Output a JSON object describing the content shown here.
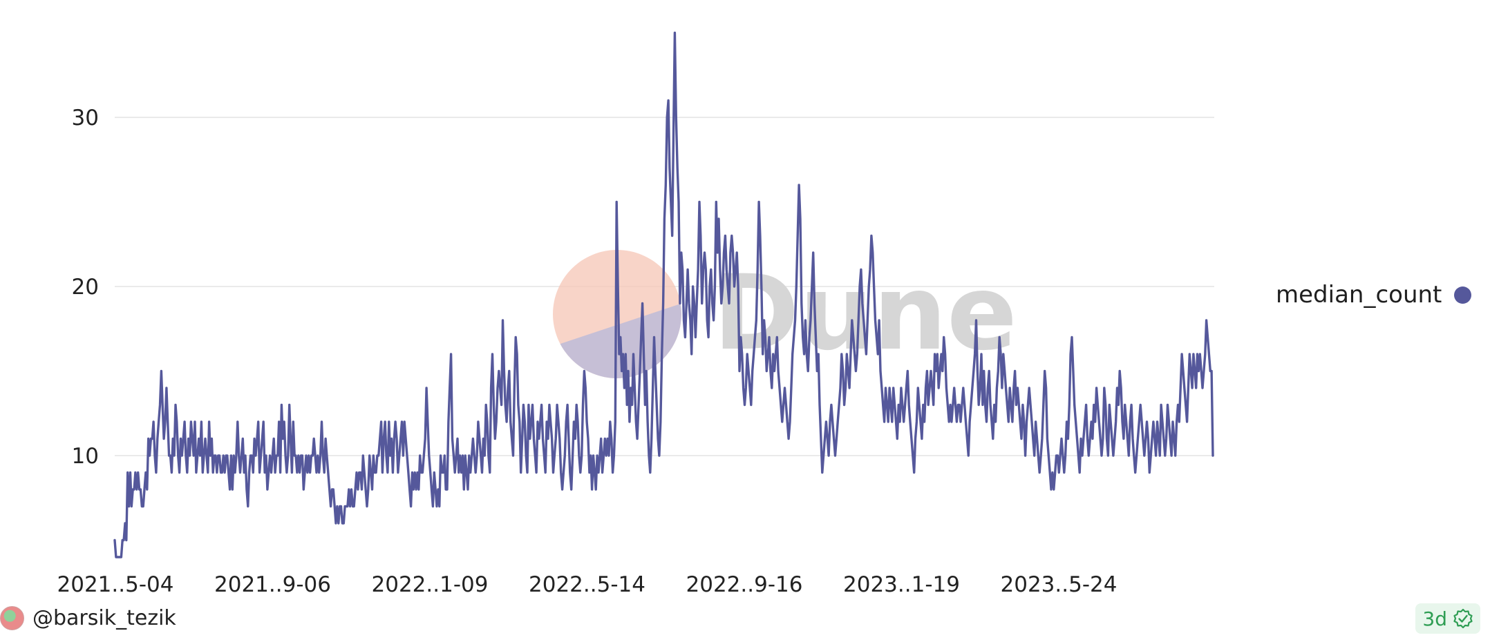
{
  "chart_data": {
    "type": "line",
    "x_ticks": [
      "2021..5-04",
      "2021..9-06",
      "2022..1-09",
      "2022..5-14",
      "2022..9-16",
      "2023..1-19",
      "2023..5-24"
    ],
    "y_ticks": [
      10,
      20,
      30
    ],
    "ylim": [
      4,
      35
    ],
    "grid": true,
    "legend_position": "right",
    "series": [
      {
        "name": "median_count",
        "color": "#55589b",
        "values": [
          5,
          4,
          4,
          4,
          4,
          4,
          5,
          5,
          6,
          5,
          9,
          7,
          9,
          7,
          8,
          8,
          9,
          8,
          9,
          8,
          8,
          7,
          7,
          8,
          9,
          8,
          11,
          10,
          11,
          11,
          12,
          10,
          9,
          11,
          12,
          13,
          15,
          13,
          11,
          12,
          14,
          12,
          10,
          10,
          9,
          11,
          10,
          13,
          12,
          10,
          9,
          11,
          10,
          11,
          12,
          10,
          9,
          11,
          10,
          12,
          11,
          10,
          12,
          9,
          10,
          11,
          10,
          12,
          9,
          10,
          11,
          10,
          9,
          12,
          10,
          11,
          9,
          10,
          10,
          9,
          10,
          10,
          9,
          9,
          10,
          9,
          10,
          10,
          9,
          8,
          10,
          8,
          10,
          9,
          10,
          12,
          10,
          9,
          10,
          11,
          9,
          10,
          8,
          7,
          9,
          10,
          10,
          9,
          11,
          10,
          11,
          12,
          9,
          10,
          11,
          12,
          9,
          10,
          8,
          9,
          10,
          9,
          10,
          11,
          9,
          10,
          10,
          12,
          9,
          13,
          11,
          12,
          10,
          9,
          10,
          13,
          11,
          9,
          12,
          10,
          10,
          9,
          10,
          9,
          10,
          10,
          8,
          9,
          10,
          9,
          10,
          9,
          10,
          10,
          11,
          10,
          9,
          10,
          9,
          10,
          12,
          10,
          9,
          11,
          10,
          9,
          8,
          7,
          8,
          8,
          7,
          6,
          7,
          6,
          7,
          7,
          6,
          6,
          7,
          7,
          7,
          8,
          7,
          8,
          7,
          7,
          8,
          9,
          8,
          9,
          9,
          8,
          10,
          9,
          8,
          7,
          8,
          10,
          9,
          8,
          10,
          9,
          9,
          10,
          10,
          11,
          12,
          9,
          11,
          12,
          10,
          9,
          12,
          10,
          11,
          9,
          11,
          12,
          11,
          9,
          10,
          11,
          12,
          10,
          12,
          11,
          10,
          9,
          8,
          7,
          9,
          8,
          9,
          8,
          9,
          8,
          10,
          9,
          9,
          10,
          11,
          14,
          12,
          10,
          9,
          8,
          7,
          9,
          8,
          7,
          8,
          7,
          10,
          9,
          9,
          10,
          8,
          8,
          12,
          14,
          16,
          11,
          10,
          9,
          10,
          11,
          9,
          10,
          9,
          10,
          8,
          10,
          9,
          8,
          10,
          9,
          10,
          11,
          10,
          9,
          10,
          12,
          11,
          10,
          9,
          11,
          10,
          13,
          12,
          10,
          9,
          14,
          16,
          13,
          11,
          12,
          14,
          15,
          14,
          13,
          18,
          15,
          13,
          12,
          14,
          15,
          12,
          11,
          10,
          14,
          17,
          16,
          13,
          12,
          9,
          11,
          13,
          12,
          10,
          9,
          13,
          11,
          12,
          13,
          11,
          10,
          9,
          12,
          11,
          12,
          13,
          11,
          10,
          9,
          12,
          11,
          13,
          12,
          11,
          9,
          10,
          11,
          13,
          12,
          11,
          9,
          8,
          9,
          10,
          12,
          13,
          11,
          9,
          8,
          10,
          12,
          11,
          13,
          12,
          10,
          9,
          10,
          13,
          15,
          14,
          12,
          11,
          9,
          10,
          8,
          10,
          9,
          8,
          10,
          9,
          10,
          11,
          9,
          10,
          11,
          10,
          11,
          10,
          12,
          11,
          9,
          10,
          12,
          25,
          20,
          16,
          17,
          15,
          16,
          14,
          16,
          13,
          15,
          12,
          14,
          13,
          16,
          14,
          12,
          11,
          13,
          15,
          17,
          19,
          16,
          13,
          15,
          12,
          10,
          9,
          11,
          14,
          17,
          15,
          13,
          11,
          10,
          12,
          16,
          19,
          24,
          26,
          30,
          31,
          27,
          25,
          23,
          29,
          35,
          30,
          27,
          25,
          19,
          22,
          21,
          18,
          17,
          19,
          21,
          19,
          18,
          16,
          20,
          19,
          17,
          19,
          21,
          25,
          23,
          19,
          21,
          22,
          21,
          18,
          17,
          20,
          21,
          19,
          18,
          20,
          25,
          22,
          24,
          21,
          19,
          20,
          22,
          23,
          21,
          20,
          19,
          22,
          23,
          22,
          20,
          21,
          22,
          20,
          15,
          17,
          16,
          14,
          13,
          14,
          16,
          15,
          14,
          13,
          15,
          16,
          17,
          18,
          21,
          25,
          23,
          20,
          16,
          18,
          17,
          15,
          16,
          17,
          15,
          14,
          16,
          15,
          16,
          17,
          15,
          14,
          13,
          12,
          13,
          14,
          13,
          12,
          11,
          12,
          14,
          16,
          17,
          18,
          20,
          23,
          26,
          24,
          19,
          17,
          16,
          18,
          16,
          15,
          17,
          18,
          20,
          22,
          19,
          17,
          15,
          16,
          13,
          11,
          9,
          10,
          11,
          12,
          11,
          10,
          12,
          13,
          12,
          11,
          10,
          11,
          12,
          13,
          14,
          16,
          15,
          13,
          14,
          16,
          15,
          14,
          16,
          18,
          17,
          16,
          15,
          16,
          18,
          20,
          21,
          19,
          18,
          17,
          16,
          18,
          20,
          21,
          23,
          22,
          20,
          18,
          17,
          16,
          18,
          15,
          14,
          13,
          12,
          14,
          13,
          12,
          14,
          13,
          12,
          14,
          13,
          12,
          11,
          13,
          12,
          14,
          13,
          12,
          13,
          14,
          15,
          13,
          12,
          11,
          10,
          9,
          11,
          12,
          14,
          13,
          12,
          11,
          13,
          12,
          14,
          15,
          13,
          14,
          15,
          14,
          13,
          16,
          15,
          16,
          14,
          15,
          16,
          15,
          17,
          16,
          14,
          13,
          12,
          13,
          12,
          13,
          14,
          13,
          12,
          13,
          13,
          12,
          13,
          14,
          13,
          12,
          11,
          10,
          12,
          13,
          14,
          15,
          16,
          18,
          15,
          13,
          14,
          16,
          13,
          15,
          13,
          12,
          14,
          15,
          13,
          12,
          11,
          13,
          12,
          14,
          15,
          17,
          16,
          14,
          16,
          15,
          14,
          13,
          12,
          14,
          13,
          12,
          14,
          15,
          13,
          14,
          13,
          12,
          11,
          13,
          12,
          10,
          12,
          13,
          14,
          13,
          12,
          11,
          10,
          12,
          11,
          10,
          9,
          10,
          11,
          13,
          15,
          14,
          11,
          10,
          9,
          8,
          9,
          8,
          9,
          10,
          10,
          9,
          10,
          11,
          10,
          9,
          10,
          12,
          11,
          13,
          16,
          17,
          15,
          13,
          12,
          11,
          10,
          9,
          11,
          10,
          11,
          12,
          13,
          11,
          10,
          11,
          12,
          11,
          13,
          12,
          14,
          13,
          12,
          11,
          10,
          11,
          14,
          13,
          11,
          10,
          13,
          12,
          11,
          10,
          11,
          12,
          14,
          13,
          15,
          14,
          12,
          11,
          13,
          12,
          11,
          10,
          12,
          13,
          11,
          10,
          9,
          10,
          11,
          12,
          13,
          12,
          11,
          10,
          11,
          12,
          11,
          9,
          10,
          11,
          12,
          11,
          10,
          12,
          11,
          10,
          13,
          12,
          11,
          10,
          11,
          13,
          12,
          11,
          10,
          12,
          11,
          10,
          12,
          13,
          12,
          14,
          16,
          15,
          14,
          13,
          12,
          14,
          16,
          15,
          14,
          16,
          15,
          14,
          16,
          15,
          16,
          15,
          14,
          15,
          16,
          18,
          17,
          16,
          15,
          15,
          10
        ]
      }
    ]
  },
  "legend": {
    "label": "median_count",
    "color": "#55589b"
  },
  "watermark": {
    "text": "Dune"
  },
  "footer": {
    "author": "@barsik_tezik",
    "age": "3d"
  }
}
